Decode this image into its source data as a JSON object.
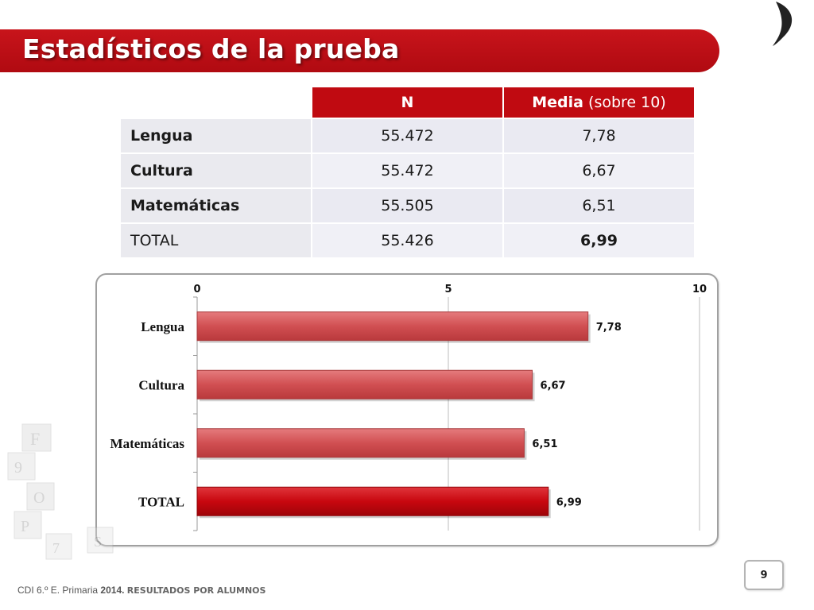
{
  "title": "Estadísticos de la prueba",
  "table": {
    "headers": {
      "n": "N",
      "media_bold": "Media",
      "media_rest": "(sobre 10)"
    },
    "rows": [
      {
        "label": "Lengua",
        "n": "55.472",
        "media": "7,78"
      },
      {
        "label": "Cultura",
        "n": "55.472",
        "media": "6,67"
      },
      {
        "label": "Matemáticas",
        "n": "55.505",
        "media": "6,51"
      },
      {
        "label": "TOTAL",
        "n": "55.426",
        "media": "6,99"
      }
    ]
  },
  "chart_data": {
    "type": "bar",
    "orientation": "horizontal",
    "categories": [
      "Lengua",
      "Cultura",
      "Matemáticas",
      "TOTAL"
    ],
    "values": [
      7.78,
      6.67,
      6.51,
      6.99
    ],
    "value_labels": [
      "7,78",
      "6,67",
      "6,51",
      "6,99"
    ],
    "xlim": [
      0,
      10
    ],
    "xticks": [
      0,
      5,
      10
    ],
    "xtick_labels": [
      "0",
      "5",
      "10"
    ],
    "axis_position": "top",
    "grid": true,
    "colors": {
      "bar": "#d14f52",
      "total_bar": "#c8070f"
    }
  },
  "colors": {
    "accent": "#c00a11"
  },
  "footer": {
    "prefix": "CDI 6.º E. Primaria",
    "year": "2014.",
    "section": "RESULTADOS POR ALUMNOS",
    "page": "9"
  }
}
